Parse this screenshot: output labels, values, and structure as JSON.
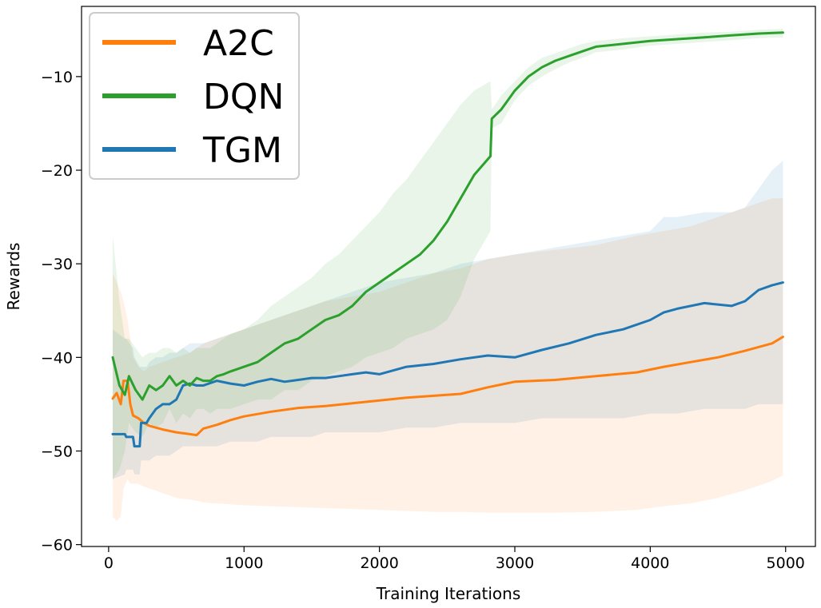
{
  "chart_data": {
    "type": "line",
    "title": "",
    "xlabel": "Training Iterations",
    "ylabel": "Rewards",
    "xlim": [
      -200,
      5220
    ],
    "ylim": [
      -60.2,
      -2.5
    ],
    "xticks": [
      0,
      1000,
      2000,
      3000,
      4000,
      5000
    ],
    "xtick_labels": [
      "0",
      "1000",
      "2000",
      "3000",
      "4000",
      "5000"
    ],
    "yticks": [
      -60,
      -50,
      -40,
      -30,
      -20,
      -10
    ],
    "ytick_labels": [
      "−60",
      "−50",
      "−40",
      "−30",
      "−20",
      "−10"
    ],
    "grid": false,
    "legend_position": "top-left",
    "series": [
      {
        "name": "A2C",
        "color": "#ff7f0e",
        "x": [
          30,
          60,
          90,
          110,
          140,
          160,
          180,
          220,
          260,
          300,
          400,
          500,
          600,
          650,
          700,
          800,
          900,
          1000,
          1200,
          1400,
          1600,
          1800,
          2000,
          2200,
          2400,
          2600,
          2800,
          3000,
          3300,
          3600,
          3900,
          4100,
          4300,
          4500,
          4700,
          4900,
          4980
        ],
        "y": [
          -44.4,
          -43.8,
          -45,
          -42.5,
          -42.5,
          -45,
          -46.2,
          -46.5,
          -47,
          -47.3,
          -47.7,
          -48.0,
          -48.2,
          -48.3,
          -47.6,
          -47.2,
          -46.7,
          -46.3,
          -45.8,
          -45.4,
          -45.2,
          -44.9,
          -44.6,
          -44.3,
          -44.1,
          -43.9,
          -43.2,
          -42.6,
          -42.4,
          -42.0,
          -41.6,
          -41.0,
          -40.5,
          -40.0,
          -39.3,
          -38.5,
          -37.8
        ],
        "upper": [
          -31,
          -32,
          -33,
          -34,
          -36,
          -38,
          -40,
          -41,
          -41.5,
          -41,
          -40.5,
          -40,
          -39.5,
          -39,
          -38.5,
          -38,
          -37.5,
          -37,
          -36,
          -35,
          -34,
          -33.5,
          -33,
          -32,
          -31,
          -30.5,
          -29.5,
          -29,
          -28.5,
          -28,
          -27,
          -26.5,
          -26,
          -25,
          -24,
          -23,
          -23
        ],
        "lower": [
          -57,
          -57.5,
          -57,
          -54,
          -53,
          -53.5,
          -53.5,
          -53.5,
          -53.8,
          -54,
          -54.5,
          -55,
          -55.2,
          -55.3,
          -55.5,
          -55.6,
          -55.7,
          -55.8,
          -55.9,
          -56,
          -56.1,
          -56.2,
          -56.3,
          -56.4,
          -56.5,
          -56.5,
          -56.6,
          -56.6,
          -56.6,
          -56.5,
          -56.3,
          -55.9,
          -55.6,
          -55.0,
          -54.2,
          -53.2,
          -52.6
        ]
      },
      {
        "name": "DQN",
        "color": "#2ca02c",
        "x": [
          30,
          80,
          120,
          150,
          200,
          250,
          300,
          350,
          400,
          450,
          500,
          550,
          600,
          650,
          700,
          750,
          800,
          850,
          900,
          1000,
          1100,
          1200,
          1300,
          1400,
          1500,
          1600,
          1700,
          1800,
          1900,
          2000,
          2100,
          2200,
          2300,
          2400,
          2500,
          2600,
          2700,
          2820,
          2830,
          2900,
          3000,
          3100,
          3200,
          3300,
          3400,
          3500,
          3600,
          3800,
          4000,
          4200,
          4400,
          4600,
          4800,
          4980
        ],
        "y": [
          -40,
          -43,
          -44,
          -42,
          -43.5,
          -44.5,
          -43,
          -43.5,
          -43,
          -42,
          -43,
          -42.5,
          -43,
          -42.2,
          -42.5,
          -42.5,
          -42,
          -41.8,
          -41.5,
          -41,
          -40.5,
          -39.5,
          -38.5,
          -38,
          -37,
          -36,
          -35.5,
          -34.5,
          -33,
          -32,
          -31,
          -30,
          -29,
          -27.5,
          -25.5,
          -23,
          -20.5,
          -18.5,
          -14.5,
          -13.5,
          -11.5,
          -10,
          -9,
          -8.3,
          -7.8,
          -7.3,
          -6.8,
          -6.5,
          -6.2,
          -6.0,
          -5.8,
          -5.6,
          -5.4,
          -5.3
        ],
        "upper": [
          -27,
          -34,
          -38,
          -38,
          -39,
          -40,
          -39.5,
          -39.5,
          -39,
          -39,
          -39.5,
          -39,
          -39.5,
          -39,
          -39,
          -39,
          -38.5,
          -38,
          -37.5,
          -37,
          -36,
          -34.5,
          -33.5,
          -32.5,
          -31.5,
          -30,
          -29,
          -27.5,
          -26,
          -24.5,
          -22.5,
          -21,
          -19,
          -17,
          -15,
          -13,
          -11.5,
          -10.5,
          -13.5,
          -12,
          -10.5,
          -9,
          -8,
          -7.5,
          -7,
          -6.5,
          -6.2,
          -5.9,
          -5.7,
          -5.5,
          -5.3,
          -5.2,
          -5.0,
          -4.9
        ],
        "lower": [
          -53,
          -52,
          -50,
          -47,
          -48,
          -48.5,
          -47,
          -47.5,
          -47,
          -45.5,
          -47,
          -46,
          -46.5,
          -45.5,
          -45.5,
          -46,
          -45.5,
          -45.5,
          -45.5,
          -45,
          -44.5,
          -44.5,
          -43.5,
          -43.5,
          -42.5,
          -42,
          -41.5,
          -41,
          -40,
          -39.5,
          -39,
          -38,
          -37.5,
          -37,
          -36,
          -33.5,
          -29.5,
          -26.5,
          -15.5,
          -15,
          -12.5,
          -11,
          -10,
          -9.2,
          -8.5,
          -8.0,
          -7.4,
          -7.1,
          -6.7,
          -6.5,
          -6.3,
          -6.1,
          -5.9,
          -5.8
        ]
      },
      {
        "name": "TGM",
        "color": "#1f77b4",
        "x": [
          30,
          120,
          130,
          180,
          190,
          230,
          240,
          280,
          300,
          350,
          400,
          450,
          500,
          550,
          600,
          650,
          700,
          800,
          900,
          1000,
          1100,
          1200,
          1300,
          1400,
          1500,
          1600,
          1700,
          1800,
          1900,
          2000,
          2200,
          2400,
          2600,
          2800,
          3000,
          3200,
          3400,
          3600,
          3800,
          4000,
          4100,
          4200,
          4400,
          4600,
          4700,
          4800,
          4900,
          4980
        ],
        "y": [
          -48.2,
          -48.2,
          -48.5,
          -48.5,
          -49.5,
          -49.5,
          -47,
          -47,
          -46.5,
          -45.5,
          -45,
          -45,
          -44.5,
          -43,
          -42.8,
          -43,
          -43,
          -42.5,
          -42.8,
          -43.0,
          -42.6,
          -42.3,
          -42.6,
          -42.4,
          -42.2,
          -42.2,
          -42.0,
          -41.8,
          -41.6,
          -41.8,
          -41.0,
          -40.7,
          -40.2,
          -39.8,
          -40.0,
          -39.2,
          -38.5,
          -37.6,
          -37.0,
          -36.0,
          -35.2,
          -34.8,
          -34.2,
          -34.5,
          -34.0,
          -32.8,
          -32.3,
          -32.0
        ],
        "upper": [
          -37,
          -38,
          -38,
          -39,
          -40,
          -41,
          -41,
          -41,
          -40.5,
          -40,
          -40,
          -39.5,
          -39.5,
          -39,
          -38.5,
          -38.5,
          -38.5,
          -38,
          -37.5,
          -37,
          -36.5,
          -36,
          -35.5,
          -35,
          -34.5,
          -34,
          -33.5,
          -33,
          -32.5,
          -32,
          -31.5,
          -31,
          -30,
          -29.5,
          -29,
          -28.5,
          -28,
          -27.5,
          -27,
          -26.5,
          -25,
          -25,
          -24.5,
          -24.5,
          -24,
          -22,
          -20,
          -19
        ],
        "lower": [
          -53,
          -52.5,
          -52,
          -52,
          -52.5,
          -52.5,
          -51,
          -51,
          -51,
          -50.5,
          -50.5,
          -50.5,
          -50,
          -49.5,
          -49.5,
          -49.5,
          -49.5,
          -49.5,
          -49,
          -49,
          -49,
          -48.5,
          -48.5,
          -48.5,
          -48.5,
          -48,
          -48,
          -48,
          -48,
          -48,
          -47.5,
          -47.5,
          -47,
          -47,
          -47,
          -46.5,
          -46.5,
          -46.5,
          -46.5,
          -46,
          -46,
          -46,
          -45.5,
          -45.5,
          -45.5,
          -45,
          -45,
          -45
        ]
      }
    ]
  }
}
